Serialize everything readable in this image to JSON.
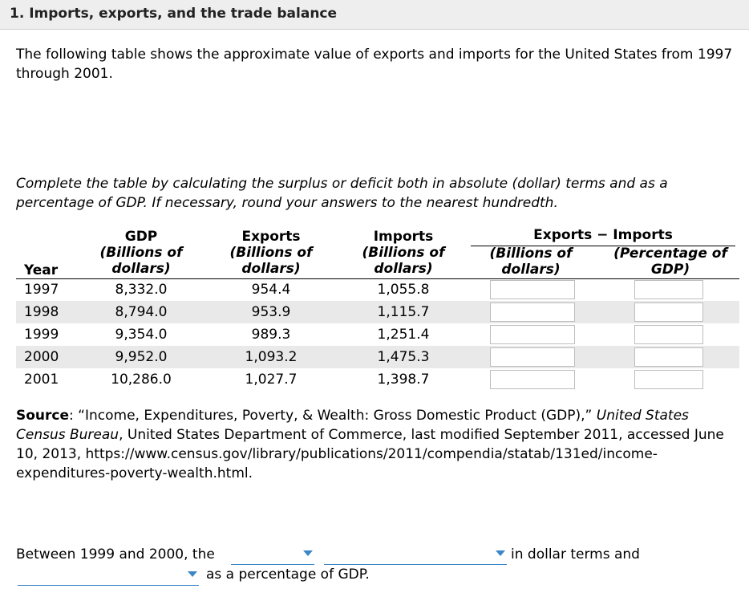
{
  "header": {
    "title": "1. Imports, exports, and the trade balance"
  },
  "intro": "The following table shows the approximate value of exports and imports for the United States from 1997 through 2001.",
  "instructions": "Complete the table by calculating the surplus or deficit both in absolute (dollar) terms and as a percentage of GDP. If necessary, round your answers to the nearest hundredth.",
  "table": {
    "headers": {
      "year": "Year",
      "gdp": "GDP",
      "gdp_sub1": "(Billions of",
      "gdp_sub2": "dollars)",
      "exports": "Exports",
      "exports_sub1": "(Billions of",
      "exports_sub2": "dollars)",
      "imports": "Imports",
      "imports_sub1": "(Billions of",
      "imports_sub2": "dollars)",
      "balance": "Exports − Imports",
      "balance_dollars1": "(Billions of",
      "balance_dollars2": "dollars)",
      "balance_pct1": "(Percentage of",
      "balance_pct2": "GDP)"
    },
    "rows": [
      {
        "year": "1997",
        "gdp": "8,332.0",
        "exports": "954.4",
        "imports": "1,055.8"
      },
      {
        "year": "1998",
        "gdp": "8,794.0",
        "exports": "953.9",
        "imports": "1,115.7"
      },
      {
        "year": "1999",
        "gdp": "9,354.0",
        "exports": "989.3",
        "imports": "1,251.4"
      },
      {
        "year": "2000",
        "gdp": "9,952.0",
        "exports": "1,093.2",
        "imports": "1,475.3"
      },
      {
        "year": "2001",
        "gdp": "10,286.0",
        "exports": "1,027.7",
        "imports": "1,398.7"
      }
    ]
  },
  "source": {
    "label": "Source",
    "sep": ": ",
    "quote": "“Income, Expenditures, Poverty, & Wealth: Gross Domestic Product (GDP),”",
    "publication": "United States Census Bureau",
    "rest": ", United States Department of Commerce, last modified September 2011, accessed June 10, 2013, https://www.census.gov/library/publications/2011/compendia/statab/131ed/income-expenditures-poverty-wealth.html."
  },
  "question": {
    "part1": "Between 1999 and 2000, the",
    "part2": "in dollar terms and",
    "part3": "as a percentage of GDP."
  },
  "colors": {
    "accent": "#3b86c6",
    "shade": "#e9e9e9",
    "title_bg": "#eeeeee"
  }
}
